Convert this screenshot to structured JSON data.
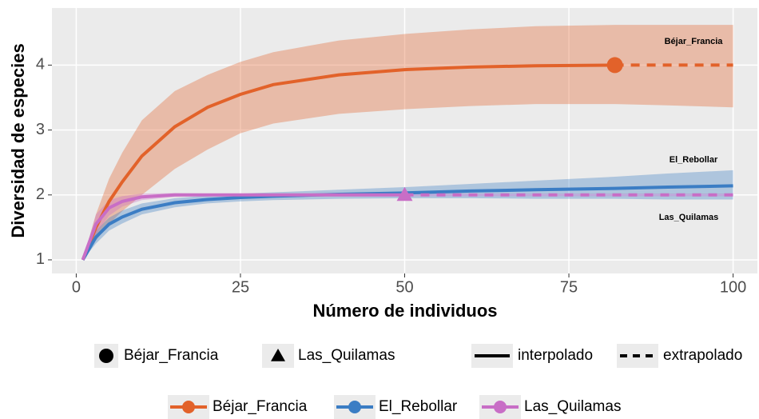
{
  "chart_data": {
    "type": "line",
    "x_label": "Número de individuos",
    "y_label": "Diversidad de especies",
    "x": [
      1,
      3,
      5,
      7,
      10,
      15,
      20,
      25,
      30,
      40,
      50,
      60,
      70,
      82,
      90,
      100
    ],
    "xlim": [
      -3.7,
      103.7
    ],
    "xticks": [
      0,
      25,
      50,
      75,
      100
    ],
    "ylim": [
      0.79,
      4.88
    ],
    "yticks": [
      1,
      2,
      3,
      4
    ],
    "grid": true,
    "series": [
      {
        "name": "Béjar_Francia",
        "color": "#e2622a",
        "marker": "circle",
        "observed_x": 82,
        "values": [
          1,
          1.5,
          1.9,
          2.2,
          2.6,
          3.05,
          3.35,
          3.55,
          3.7,
          3.85,
          3.93,
          3.97,
          3.99,
          4.0,
          4.0,
          4.0
        ],
        "lower": [
          1,
          1.3,
          1.55,
          1.75,
          2.0,
          2.4,
          2.7,
          2.95,
          3.1,
          3.25,
          3.32,
          3.37,
          3.4,
          3.4,
          3.38,
          3.35
        ],
        "upper": [
          1,
          1.7,
          2.25,
          2.65,
          3.15,
          3.6,
          3.85,
          4.05,
          4.2,
          4.38,
          4.48,
          4.55,
          4.6,
          4.62,
          4.62,
          4.62
        ]
      },
      {
        "name": "El_Rebollar",
        "color": "#3b7dc4",
        "marker": null,
        "observed_x": null,
        "values": [
          1,
          1.35,
          1.55,
          1.66,
          1.78,
          1.88,
          1.93,
          1.96,
          1.98,
          2.01,
          2.03,
          2.06,
          2.08,
          2.1,
          2.12,
          2.14
        ],
        "lower": [
          1,
          1.25,
          1.45,
          1.56,
          1.7,
          1.81,
          1.87,
          1.9,
          1.92,
          1.94,
          1.95,
          1.95,
          1.94,
          1.94,
          1.93,
          1.93
        ],
        "upper": [
          1,
          1.45,
          1.65,
          1.76,
          1.87,
          1.95,
          1.99,
          2.02,
          2.04,
          2.08,
          2.12,
          2.17,
          2.22,
          2.28,
          2.33,
          2.38
        ]
      },
      {
        "name": "Las_Quilamas",
        "color": "#c86ec6",
        "marker": "triangle",
        "observed_x": 50,
        "values": [
          1,
          1.55,
          1.8,
          1.9,
          1.97,
          2.0,
          2.0,
          2.0,
          2.0,
          2.0,
          2.0,
          2.0,
          2.0,
          2.0,
          2.0,
          2.0
        ],
        "lower": [
          1,
          1.4,
          1.68,
          1.82,
          1.92,
          1.97,
          1.98,
          1.98,
          1.98,
          1.98,
          1.98,
          1.98,
          1.98,
          1.98,
          1.98,
          1.98
        ],
        "upper": [
          1,
          1.7,
          1.92,
          1.98,
          2.02,
          2.03,
          2.02,
          2.02,
          2.02,
          2.02,
          2.02,
          2.02,
          2.02,
          2.02,
          2.02,
          2.02
        ]
      }
    ],
    "linetype_legend": [
      "interpolado",
      "extrapolado"
    ]
  }
}
